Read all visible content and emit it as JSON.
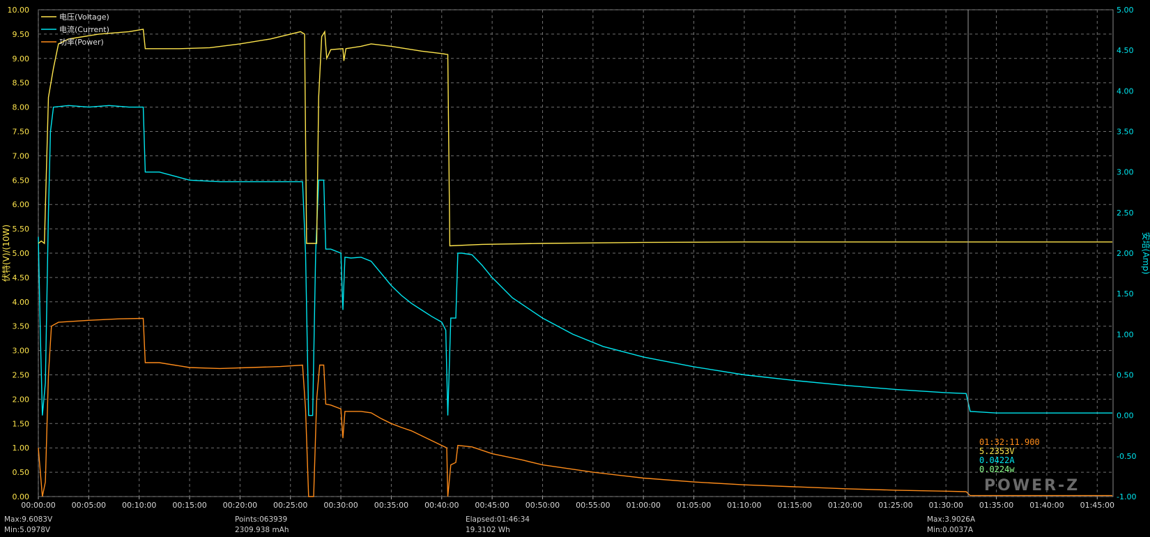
{
  "chart_data": {
    "type": "line",
    "title": "",
    "xlabel": "",
    "ylabel_left": "伏特(V)/(10W)",
    "ylabel_right": "安培(Amp)",
    "ylim_left": [
      0,
      10
    ],
    "ylim_right": [
      -1,
      5
    ],
    "xlim_min": [
      0,
      106.57
    ],
    "grid": true,
    "legend_position": "top-left",
    "x_ticks": [
      "00:00:00",
      "00:05:00",
      "00:10:00",
      "00:15:00",
      "00:20:00",
      "00:25:00",
      "00:30:00",
      "00:35:00",
      "00:40:00",
      "00:45:00",
      "00:50:00",
      "00:55:00",
      "01:00:00",
      "01:05:00",
      "01:10:00",
      "01:15:00",
      "01:20:00",
      "01:25:00",
      "01:30:00",
      "01:35:00",
      "01:40:00",
      "01:45:00"
    ],
    "y_ticks_left": [
      "0.00",
      "0.50",
      "1.00",
      "1.50",
      "2.00",
      "2.50",
      "3.00",
      "3.50",
      "4.00",
      "4.50",
      "5.00",
      "5.50",
      "6.00",
      "6.50",
      "7.00",
      "7.50",
      "8.00",
      "8.50",
      "9.00",
      "9.50",
      "10.00"
    ],
    "y_ticks_right": [
      "-1.00",
      "-0.50",
      "0.00",
      "0.50",
      "1.00",
      "1.50",
      "2.00",
      "2.50",
      "3.00",
      "3.50",
      "4.00",
      "4.50",
      "5.00"
    ],
    "series": [
      {
        "name": "电压(Voltage)",
        "color": "#ffe64d",
        "axis": "left",
        "points": [
          [
            0,
            5.2
          ],
          [
            0.3,
            5.25
          ],
          [
            0.6,
            5.2
          ],
          [
            1.0,
            8.2
          ],
          [
            1.5,
            8.8
          ],
          [
            2.0,
            9.3
          ],
          [
            3,
            9.4
          ],
          [
            6,
            9.5
          ],
          [
            9,
            9.55
          ],
          [
            10.4,
            9.6
          ],
          [
            10.6,
            9.2
          ],
          [
            14,
            9.2
          ],
          [
            17,
            9.22
          ],
          [
            20,
            9.3
          ],
          [
            23,
            9.4
          ],
          [
            26,
            9.55
          ],
          [
            26.4,
            9.5
          ],
          [
            26.6,
            5.2
          ],
          [
            27.2,
            5.2
          ],
          [
            27.6,
            5.2
          ],
          [
            27.8,
            8.2
          ],
          [
            28.1,
            9.45
          ],
          [
            28.4,
            9.55
          ],
          [
            28.6,
            9.0
          ],
          [
            29,
            9.18
          ],
          [
            30.2,
            9.2
          ],
          [
            30.3,
            8.95
          ],
          [
            30.5,
            9.2
          ],
          [
            32,
            9.25
          ],
          [
            33,
            9.3
          ],
          [
            35,
            9.25
          ],
          [
            38,
            9.15
          ],
          [
            40,
            9.1
          ],
          [
            40.6,
            9.08
          ],
          [
            40.8,
            5.15
          ],
          [
            44,
            5.18
          ],
          [
            50,
            5.2
          ],
          [
            60,
            5.22
          ],
          [
            70,
            5.23
          ],
          [
            80,
            5.23
          ],
          [
            90,
            5.23
          ],
          [
            92,
            5.23
          ],
          [
            100,
            5.23
          ],
          [
            106.5,
            5.23
          ]
        ]
      },
      {
        "name": "电流(Current)",
        "color": "#00e6f0",
        "axis": "right",
        "points": [
          [
            0,
            2.2
          ],
          [
            0.2,
            1.0
          ],
          [
            0.4,
            0.0
          ],
          [
            0.7,
            0.4
          ],
          [
            1.0,
            2.5
          ],
          [
            1.2,
            3.5
          ],
          [
            1.5,
            3.8
          ],
          [
            3,
            3.82
          ],
          [
            5,
            3.8
          ],
          [
            7,
            3.82
          ],
          [
            9,
            3.8
          ],
          [
            10.4,
            3.8
          ],
          [
            10.6,
            3.0
          ],
          [
            11,
            3.0
          ],
          [
            12,
            3.0
          ],
          [
            15,
            2.9
          ],
          [
            18,
            2.88
          ],
          [
            21,
            2.88
          ],
          [
            24,
            2.88
          ],
          [
            26.2,
            2.88
          ],
          [
            26.5,
            2.0
          ],
          [
            26.8,
            0.0
          ],
          [
            27.2,
            0.0
          ],
          [
            27.5,
            2.0
          ],
          [
            27.8,
            2.9
          ],
          [
            28.3,
            2.9
          ],
          [
            28.5,
            2.05
          ],
          [
            29,
            2.05
          ],
          [
            30,
            2.0
          ],
          [
            30.2,
            1.3
          ],
          [
            30.4,
            1.95
          ],
          [
            31,
            1.94
          ],
          [
            32,
            1.95
          ],
          [
            33,
            1.9
          ],
          [
            34,
            1.75
          ],
          [
            35,
            1.6
          ],
          [
            36,
            1.48
          ],
          [
            37,
            1.38
          ],
          [
            38,
            1.3
          ],
          [
            39,
            1.22
          ],
          [
            40,
            1.15
          ],
          [
            40.4,
            1.05
          ],
          [
            40.6,
            0.0
          ],
          [
            40.9,
            1.2
          ],
          [
            41.4,
            1.2
          ],
          [
            41.6,
            2.0
          ],
          [
            42,
            2.0
          ],
          [
            43,
            1.98
          ],
          [
            44,
            1.85
          ],
          [
            45,
            1.7
          ],
          [
            47,
            1.45
          ],
          [
            50,
            1.2
          ],
          [
            53,
            1.0
          ],
          [
            56,
            0.85
          ],
          [
            60,
            0.72
          ],
          [
            65,
            0.6
          ],
          [
            70,
            0.5
          ],
          [
            75,
            0.43
          ],
          [
            80,
            0.37
          ],
          [
            85,
            0.32
          ],
          [
            90,
            0.28
          ],
          [
            92,
            0.27
          ],
          [
            92.4,
            0.05
          ],
          [
            95,
            0.03
          ],
          [
            100,
            0.03
          ],
          [
            106.5,
            0.03
          ]
        ]
      },
      {
        "name": "功率(Power)",
        "color": "#ff8c1a",
        "axis": "left",
        "points": [
          [
            0,
            1.0
          ],
          [
            0.2,
            0.5
          ],
          [
            0.4,
            0.0
          ],
          [
            0.7,
            0.3
          ],
          [
            1.0,
            2.5
          ],
          [
            1.3,
            3.5
          ],
          [
            2,
            3.58
          ],
          [
            5,
            3.62
          ],
          [
            8,
            3.65
          ],
          [
            10.4,
            3.66
          ],
          [
            10.6,
            2.75
          ],
          [
            12,
            2.75
          ],
          [
            15,
            2.65
          ],
          [
            18,
            2.63
          ],
          [
            21,
            2.65
          ],
          [
            24,
            2.67
          ],
          [
            26.2,
            2.7
          ],
          [
            26.5,
            1.8
          ],
          [
            26.8,
            0.0
          ],
          [
            27.3,
            0.0
          ],
          [
            27.6,
            2.0
          ],
          [
            27.9,
            2.7
          ],
          [
            28.3,
            2.7
          ],
          [
            28.5,
            1.9
          ],
          [
            29,
            1.88
          ],
          [
            30,
            1.8
          ],
          [
            30.2,
            1.2
          ],
          [
            30.4,
            1.75
          ],
          [
            32,
            1.75
          ],
          [
            33,
            1.72
          ],
          [
            34,
            1.6
          ],
          [
            35,
            1.5
          ],
          [
            36,
            1.42
          ],
          [
            37,
            1.35
          ],
          [
            38,
            1.25
          ],
          [
            39,
            1.15
          ],
          [
            40,
            1.05
          ],
          [
            40.5,
            1.0
          ],
          [
            40.6,
            0.0
          ],
          [
            40.9,
            0.65
          ],
          [
            41.4,
            0.7
          ],
          [
            41.6,
            1.05
          ],
          [
            43,
            1.02
          ],
          [
            44,
            0.95
          ],
          [
            45,
            0.88
          ],
          [
            48,
            0.75
          ],
          [
            50,
            0.65
          ],
          [
            55,
            0.5
          ],
          [
            60,
            0.38
          ],
          [
            65,
            0.3
          ],
          [
            70,
            0.24
          ],
          [
            75,
            0.2
          ],
          [
            80,
            0.16
          ],
          [
            85,
            0.13
          ],
          [
            90,
            0.11
          ],
          [
            92,
            0.1
          ],
          [
            92.4,
            0.02
          ],
          [
            95,
            0.02
          ],
          [
            100,
            0.02
          ],
          [
            106.5,
            0.02
          ]
        ]
      }
    ],
    "cursor_minute": 92.2
  },
  "cursor_readout": {
    "time": "01:32:11.900",
    "voltage": "5.2353V",
    "current": "0.0422A",
    "power": "0.0224w"
  },
  "brand": "POWER-Z",
  "stats": {
    "max_voltage": "Max:9.6083V",
    "min_voltage": "Min:5.0978V",
    "points": "Points:063939",
    "capacity": "2309.938 mAh",
    "elapsed": "Elapsed:01:46:34",
    "energy": "19.3102 Wh",
    "max_current": "Max:3.9026A",
    "min_current": "Min:0.0037A"
  },
  "colors": {
    "voltage": "#ffe64d",
    "current": "#00e6f0",
    "power": "#ff8c1a",
    "grid": "#707070",
    "axis_text": "#d8d8d8"
  }
}
